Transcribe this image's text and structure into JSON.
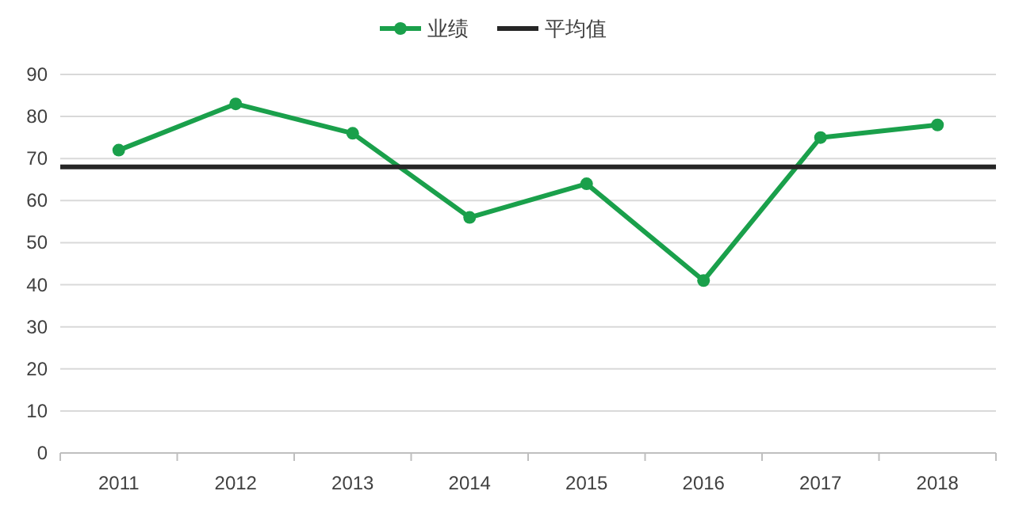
{
  "chart_data": {
    "type": "line",
    "categories": [
      "2011",
      "2012",
      "2013",
      "2014",
      "2015",
      "2016",
      "2017",
      "2018"
    ],
    "series": [
      {
        "name": "业绩",
        "color": "#1aa04b",
        "values": [
          72,
          83,
          76,
          56,
          64,
          41,
          75,
          78
        ]
      }
    ],
    "ref_lines": [
      {
        "axis": "y",
        "value": 68,
        "label": "平均值",
        "color": "#262626"
      }
    ],
    "ylim": [
      0,
      90
    ],
    "yticks": [
      0,
      10,
      20,
      30,
      40,
      50,
      60,
      70,
      80,
      90
    ],
    "grid": "y",
    "legend": "top",
    "marker": "circle",
    "line_style": "solid"
  }
}
